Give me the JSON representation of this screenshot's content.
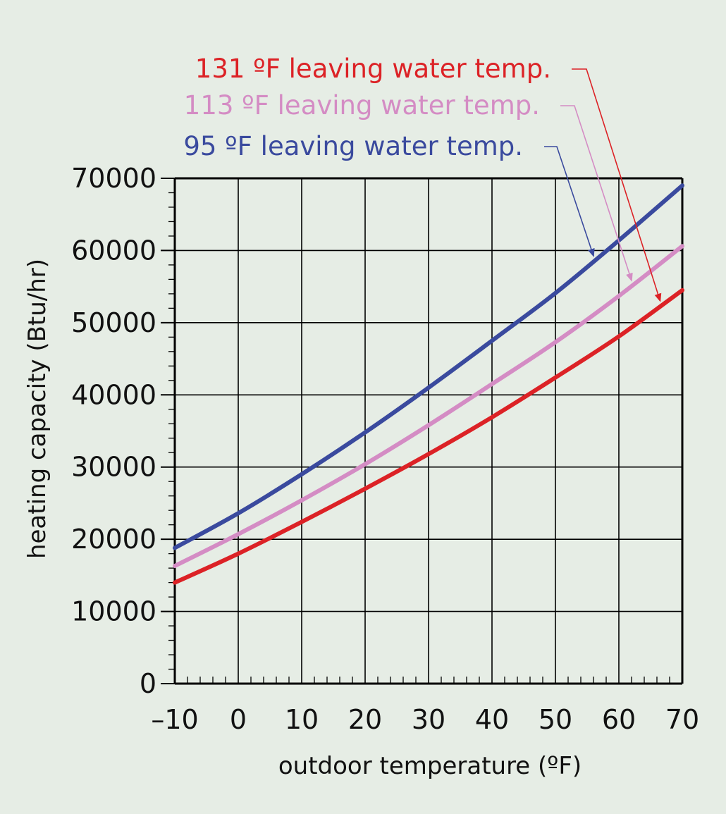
{
  "chart_data": {
    "type": "line",
    "title": "",
    "xlabel": "outdoor temperature (ºF)",
    "ylabel": "heating capacity (Btu/hr)",
    "xlim": [
      -10,
      70
    ],
    "ylim": [
      0,
      70000
    ],
    "x_ticks": [
      -10,
      0,
      10,
      20,
      30,
      40,
      50,
      60,
      70
    ],
    "x_tick_labels": [
      "–10",
      "0",
      "10",
      "20",
      "30",
      "40",
      "50",
      "60",
      "70"
    ],
    "y_ticks": [
      0,
      10000,
      20000,
      30000,
      40000,
      50000,
      60000,
      70000
    ],
    "y_tick_labels": [
      "0",
      "10000",
      "20000",
      "30000",
      "40000",
      "50000",
      "60000",
      "70000"
    ],
    "grid": true,
    "x": [
      -10,
      0,
      10,
      20,
      30,
      40,
      50,
      60,
      70
    ],
    "series": [
      {
        "name": "95 ºF leaving water temp.",
        "color": "#3a4a9e",
        "values": [
          18800,
          23600,
          29000,
          34800,
          41000,
          47500,
          54100,
          61400,
          69000
        ]
      },
      {
        "name": "113 ºF leaving water temp.",
        "color": "#d48cc4",
        "values": [
          16300,
          20700,
          25400,
          30400,
          35800,
          41500,
          47300,
          53700,
          60600
        ]
      },
      {
        "name": "131 ºF leaving water temp.",
        "color": "#dc2226",
        "values": [
          14000,
          18000,
          22400,
          27000,
          31800,
          36900,
          42400,
          48100,
          54500
        ]
      }
    ],
    "legend": {
      "placement": "top-right",
      "style": "labels with arrows pointing to curves"
    }
  }
}
